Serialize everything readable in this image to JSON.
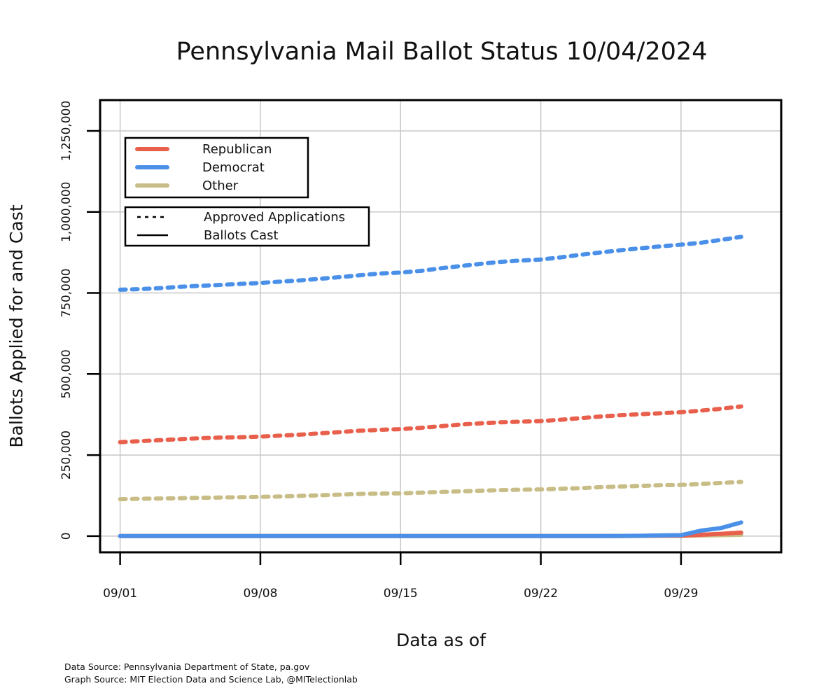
{
  "chart_data": {
    "type": "line",
    "title": "Pennsylvania Mail Ballot Status 10/04/2024",
    "xlabel": "Data as of",
    "ylabel": "Ballots Applied for and Cast",
    "x_tick_labels": [
      "09/01",
      "09/08",
      "09/15",
      "09/22",
      "09/29"
    ],
    "y_tick_labels": [
      "0",
      "250,000",
      "500,000",
      "750,000",
      "1,000,000",
      "1,250,000"
    ],
    "y_ticks": [
      0,
      250000,
      500000,
      750000,
      1000000,
      1250000
    ],
    "ylim": [
      -50000,
      1345000
    ],
    "xlim": [
      "08/31",
      "10/04"
    ],
    "grid": true,
    "legend_party": {
      "placement": "top-left",
      "entries": [
        {
          "label": "Republican",
          "color": "#e8604c"
        },
        {
          "label": "Democrat",
          "color": "#4a90e8"
        },
        {
          "label": "Other",
          "color": "#c8bd86"
        }
      ]
    },
    "legend_type": {
      "placement": "top-left",
      "entries": [
        {
          "label": "Approved Applications",
          "style": "dotted"
        },
        {
          "label": "Ballots Cast",
          "style": "solid"
        }
      ]
    },
    "dates": [
      "09/01",
      "09/02",
      "09/03",
      "09/04",
      "09/05",
      "09/06",
      "09/07",
      "09/08",
      "09/09",
      "09/10",
      "09/11",
      "09/12",
      "09/13",
      "09/14",
      "09/15",
      "09/16",
      "09/17",
      "09/18",
      "09/19",
      "09/20",
      "09/21",
      "09/22",
      "09/23",
      "09/24",
      "09/25",
      "09/26",
      "09/27",
      "09/28",
      "09/29",
      "09/30",
      "10/01",
      "10/02"
    ],
    "series": [
      {
        "party": "Democrat",
        "kind": "Approved Applications",
        "color": "#4a90e8",
        "values": [
          760000,
          762000,
          765000,
          769000,
          772000,
          775000,
          778000,
          781000,
          785000,
          789000,
          794000,
          799000,
          805000,
          810000,
          813000,
          818000,
          826000,
          833000,
          840000,
          846000,
          850000,
          853000,
          860000,
          868000,
          875000,
          882000,
          888000,
          894000,
          899000,
          905000,
          914000,
          923000
        ]
      },
      {
        "party": "Republican",
        "kind": "Approved Applications",
        "color": "#e8604c",
        "values": [
          290000,
          293000,
          296000,
          299000,
          302000,
          304000,
          305000,
          307000,
          310000,
          313000,
          317000,
          321000,
          325000,
          328000,
          330000,
          334000,
          339000,
          344000,
          348000,
          351000,
          353000,
          355000,
          359000,
          364000,
          369000,
          373000,
          376000,
          379000,
          382000,
          387000,
          393000,
          400000
        ]
      },
      {
        "party": "Other",
        "kind": "Approved Applications",
        "color": "#c8bd86",
        "values": [
          114000,
          115000,
          116000,
          117000,
          118000,
          119000,
          120000,
          121000,
          122000,
          124000,
          126000,
          128000,
          130000,
          131000,
          132000,
          134000,
          136000,
          138000,
          140000,
          142000,
          143000,
          144000,
          146000,
          148000,
          151000,
          153000,
          155000,
          157000,
          158000,
          161000,
          164000,
          167000
        ]
      },
      {
        "party": "Other",
        "kind": "Ballots Cast",
        "color": "#c8bd86",
        "values": [
          0,
          0,
          0,
          0,
          0,
          0,
          0,
          0,
          0,
          0,
          0,
          0,
          0,
          0,
          0,
          0,
          0,
          0,
          0,
          0,
          0,
          0,
          0,
          0,
          0,
          200,
          500,
          800,
          1000,
          2000,
          3000,
          4000
        ]
      },
      {
        "party": "Republican",
        "kind": "Ballots Cast",
        "color": "#e8604c",
        "values": [
          0,
          0,
          0,
          0,
          0,
          0,
          0,
          0,
          0,
          0,
          0,
          0,
          0,
          0,
          0,
          0,
          0,
          0,
          0,
          0,
          0,
          0,
          0,
          0,
          0,
          300,
          700,
          1200,
          1500,
          4000,
          7000,
          11000
        ]
      },
      {
        "party": "Democrat",
        "kind": "Ballots Cast",
        "color": "#4a90e8",
        "values": [
          0,
          0,
          0,
          0,
          0,
          0,
          0,
          0,
          0,
          0,
          0,
          0,
          0,
          0,
          0,
          0,
          0,
          0,
          0,
          0,
          0,
          0,
          0,
          0,
          0,
          500,
          1000,
          2000,
          3000,
          17000,
          25000,
          42000
        ]
      }
    ]
  },
  "sources": {
    "data_source": "Data Source: Pennsylvania Department of State, pa.gov",
    "graph_source": "Graph Source: MIT Election Data and Science Lab, @MITelectionlab"
  }
}
